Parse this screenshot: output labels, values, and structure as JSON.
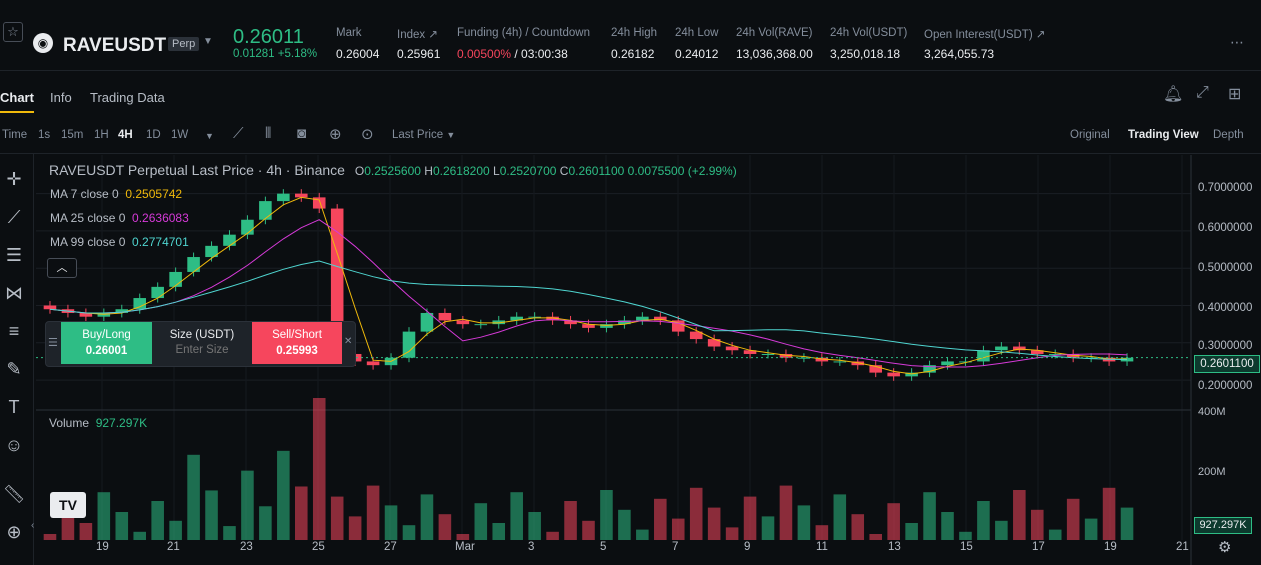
{
  "header": {
    "symbol": "RAVEUSDT",
    "contract_type": "Perp",
    "last_price": "0.26011",
    "change_abs": "0.01281",
    "change_pct": "+5.18%",
    "stats": [
      {
        "label": "Mark",
        "value": "0.26004"
      },
      {
        "label": "Index ↗",
        "value": "0.25961"
      },
      {
        "label": "Funding (4h) / Countdown",
        "value_rate": "0.00500%",
        "value_countdown": " / 03:00:38"
      },
      {
        "label": "24h High",
        "value": "0.26182"
      },
      {
        "label": "24h Low",
        "value": "0.24012"
      },
      {
        "label": "24h Vol(RAVE)",
        "value": "13,036,368.00"
      },
      {
        "label": "24h Vol(USDT)",
        "value": "3,250,018.18"
      },
      {
        "label": "Open Interest(USDT) ↗",
        "value": "3,264,055.73"
      }
    ],
    "more_icon": "more-dots-icon"
  },
  "tabs": [
    "Chart",
    "Info",
    "Trading Data"
  ],
  "toolbar": {
    "timeframes": [
      "Time",
      "1s",
      "15m",
      "1H",
      "4H",
      "1D",
      "1W"
    ],
    "active_timeframe": "4H",
    "price_type": "Last Price",
    "views": [
      "Original",
      "Trading View",
      "Depth"
    ],
    "active_view": "Trading View"
  },
  "legend": {
    "title": "RAVEUSDT Perpetual Last Price · 4h · Binance",
    "ohlc": [
      {
        "k": "O",
        "v": "0.2525600"
      },
      {
        "k": "H",
        "v": "0.2618200"
      },
      {
        "k": "L",
        "v": "0.2520700"
      },
      {
        "k": "C",
        "v": "0.2601100"
      }
    ],
    "change": "0.0075500 (+2.99%)",
    "ma": [
      {
        "label": "MA 7 close 0",
        "value": "0.2505742",
        "color": "#f0b90b"
      },
      {
        "label": "MA 25 close 0",
        "value": "0.2636083",
        "color": "#d63ad8"
      },
      {
        "label": "MA 99 close 0",
        "value": "0.2774701",
        "color": "#4fd5d0"
      }
    ],
    "volume_label": "Volume",
    "volume_value": "927.297K"
  },
  "order_panel": {
    "buy_label": "Buy/Long",
    "buy_price": "0.26001",
    "size_label": "Size (USDT)",
    "size_placeholder": "Enter Size",
    "sell_label": "Sell/Short",
    "sell_price": "0.25993"
  },
  "price_axis": [
    "0.7000000",
    "0.6000000",
    "0.5000000",
    "0.4000000",
    "0.3000000",
    "0.2000000"
  ],
  "current_price_tag": "0.2601100",
  "volume_axis": [
    "400M",
    "200M"
  ],
  "volume_tag": "927.297K",
  "time_axis": [
    "19",
    "21",
    "23",
    "25",
    "27",
    "Mar",
    "3",
    "5",
    "7",
    "9",
    "11",
    "13",
    "15",
    "17",
    "19",
    "21"
  ],
  "colors": {
    "up": "#2ebd85",
    "down": "#f6465d",
    "ma7": "#f0b90b",
    "ma25": "#d63ad8",
    "ma99": "#4fd5d0"
  },
  "chart_data": {
    "type": "candlestick",
    "interval": "4h",
    "y_range": [
      0.16,
      0.75
    ],
    "x_ticks": [
      "19",
      "21",
      "23",
      "25",
      "27",
      "Mar",
      "3",
      "5",
      "7",
      "9",
      "11",
      "13",
      "15",
      "17",
      "19",
      "21"
    ],
    "approx_close": [
      0.39,
      0.38,
      0.37,
      0.38,
      0.39,
      0.42,
      0.45,
      0.49,
      0.53,
      0.56,
      0.59,
      0.63,
      0.68,
      0.7,
      0.69,
      0.66,
      0.27,
      0.25,
      0.24,
      0.26,
      0.33,
      0.38,
      0.36,
      0.35,
      0.35,
      0.36,
      0.37,
      0.37,
      0.36,
      0.35,
      0.34,
      0.35,
      0.36,
      0.37,
      0.36,
      0.33,
      0.31,
      0.29,
      0.28,
      0.27,
      0.27,
      0.26,
      0.26,
      0.25,
      0.25,
      0.24,
      0.22,
      0.21,
      0.22,
      0.24,
      0.25,
      0.25,
      0.28,
      0.29,
      0.28,
      0.27,
      0.27,
      0.26,
      0.26,
      0.25,
      0.26
    ],
    "ma7_last": 0.2505742,
    "ma25_last": 0.2636083,
    "ma99_last": 0.2774701,
    "last_volume": "927.297K"
  }
}
